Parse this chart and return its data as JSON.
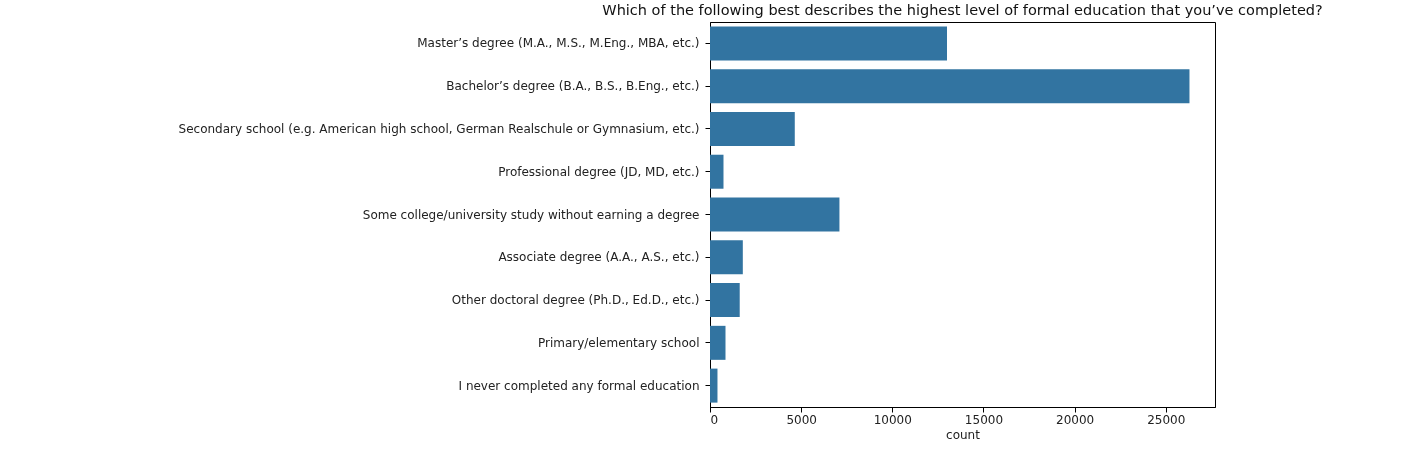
{
  "chart_data": {
    "type": "bar",
    "orientation": "horizontal",
    "title": "Which of the following best describes the highest level of formal education that you’ve completed?",
    "xlabel": "count",
    "categories": [
      "Master’s degree (M.A., M.S., M.Eng., MBA, etc.)",
      "Bachelor’s degree (B.A., B.S., B.Eng., etc.)",
      "Secondary school (e.g. American high school, German Realschule or Gymnasium, etc.)",
      "Professional degree (JD, MD, etc.)",
      "Some college/university study without earning a degree",
      "Associate degree (A.A., A.S., etc.)",
      "Other doctoral degree (Ph.D., Ed.D., etc.)",
      "Primary/elementary school",
      "I never completed any formal education"
    ],
    "values": [
      13000,
      26300,
      4650,
      740,
      7100,
      1800,
      1630,
      850,
      410
    ],
    "color": "#3274a1",
    "xlim": [
      0,
      27700
    ],
    "xticks": [
      0,
      5000,
      10000,
      15000,
      20000,
      25000
    ],
    "grid": false
  }
}
